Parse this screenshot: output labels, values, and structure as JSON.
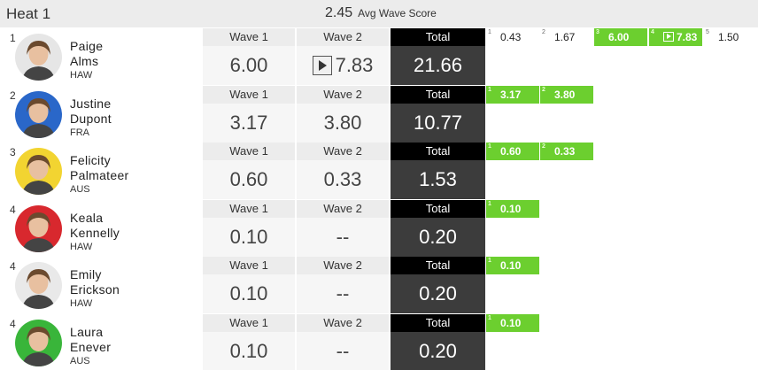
{
  "heat": {
    "title": "Heat 1",
    "avg_value": "2.45",
    "avg_label": "Avg Wave Score"
  },
  "columns": {
    "wave1": "Wave 1",
    "wave2": "Wave 2",
    "total": "Total"
  },
  "colors": {
    "accent_green": "#6ccf2f",
    "total_bg": "#3c3c3c"
  },
  "surfers": [
    {
      "rank": "1",
      "first": "Paige",
      "last": "Alms",
      "country": "HAW",
      "wave1": "6.00",
      "wave2": "7.83",
      "wave2_has_video": true,
      "total": "21.66",
      "avatar_color": "#e6e6e6",
      "waves": [
        {
          "n": "1",
          "v": "0.43",
          "hl": false
        },
        {
          "n": "2",
          "v": "1.67",
          "hl": false
        },
        {
          "n": "3",
          "v": "6.00",
          "hl": true
        },
        {
          "n": "4",
          "v": "7.83",
          "hl": true,
          "video": true
        },
        {
          "n": "5",
          "v": "1.50",
          "hl": false
        }
      ]
    },
    {
      "rank": "2",
      "first": "Justine",
      "last": "Dupont",
      "country": "FRA",
      "wave1": "3.17",
      "wave2": "3.80",
      "wave2_has_video": false,
      "total": "10.77",
      "avatar_color": "#2a67c9",
      "waves": [
        {
          "n": "1",
          "v": "3.17",
          "hl": true
        },
        {
          "n": "2",
          "v": "3.80",
          "hl": true
        }
      ]
    },
    {
      "rank": "3",
      "first": "Felicity",
      "last": "Palmateer",
      "country": "AUS",
      "wave1": "0.60",
      "wave2": "0.33",
      "wave2_has_video": false,
      "total": "1.53",
      "avatar_color": "#f2d431",
      "waves": [
        {
          "n": "1",
          "v": "0.60",
          "hl": true
        },
        {
          "n": "2",
          "v": "0.33",
          "hl": true
        }
      ]
    },
    {
      "rank": "4",
      "first": "Keala",
      "last": "Kennelly",
      "country": "HAW",
      "wave1": "0.10",
      "wave2": "--",
      "wave2_has_video": false,
      "total": "0.20",
      "avatar_color": "#d8282e",
      "waves": [
        {
          "n": "1",
          "v": "0.10",
          "hl": true
        }
      ]
    },
    {
      "rank": "4",
      "first": "Emily",
      "last": "Erickson",
      "country": "HAW",
      "wave1": "0.10",
      "wave2": "--",
      "wave2_has_video": false,
      "total": "0.20",
      "avatar_color": "#e9e9e9",
      "waves": [
        {
          "n": "1",
          "v": "0.10",
          "hl": true
        }
      ]
    },
    {
      "rank": "4",
      "first": "Laura",
      "last": "Enever",
      "country": "AUS",
      "wave1": "0.10",
      "wave2": "--",
      "wave2_has_video": false,
      "total": "0.20",
      "avatar_color": "#39b53a",
      "waves": [
        {
          "n": "1",
          "v": "0.10",
          "hl": true
        }
      ]
    }
  ]
}
